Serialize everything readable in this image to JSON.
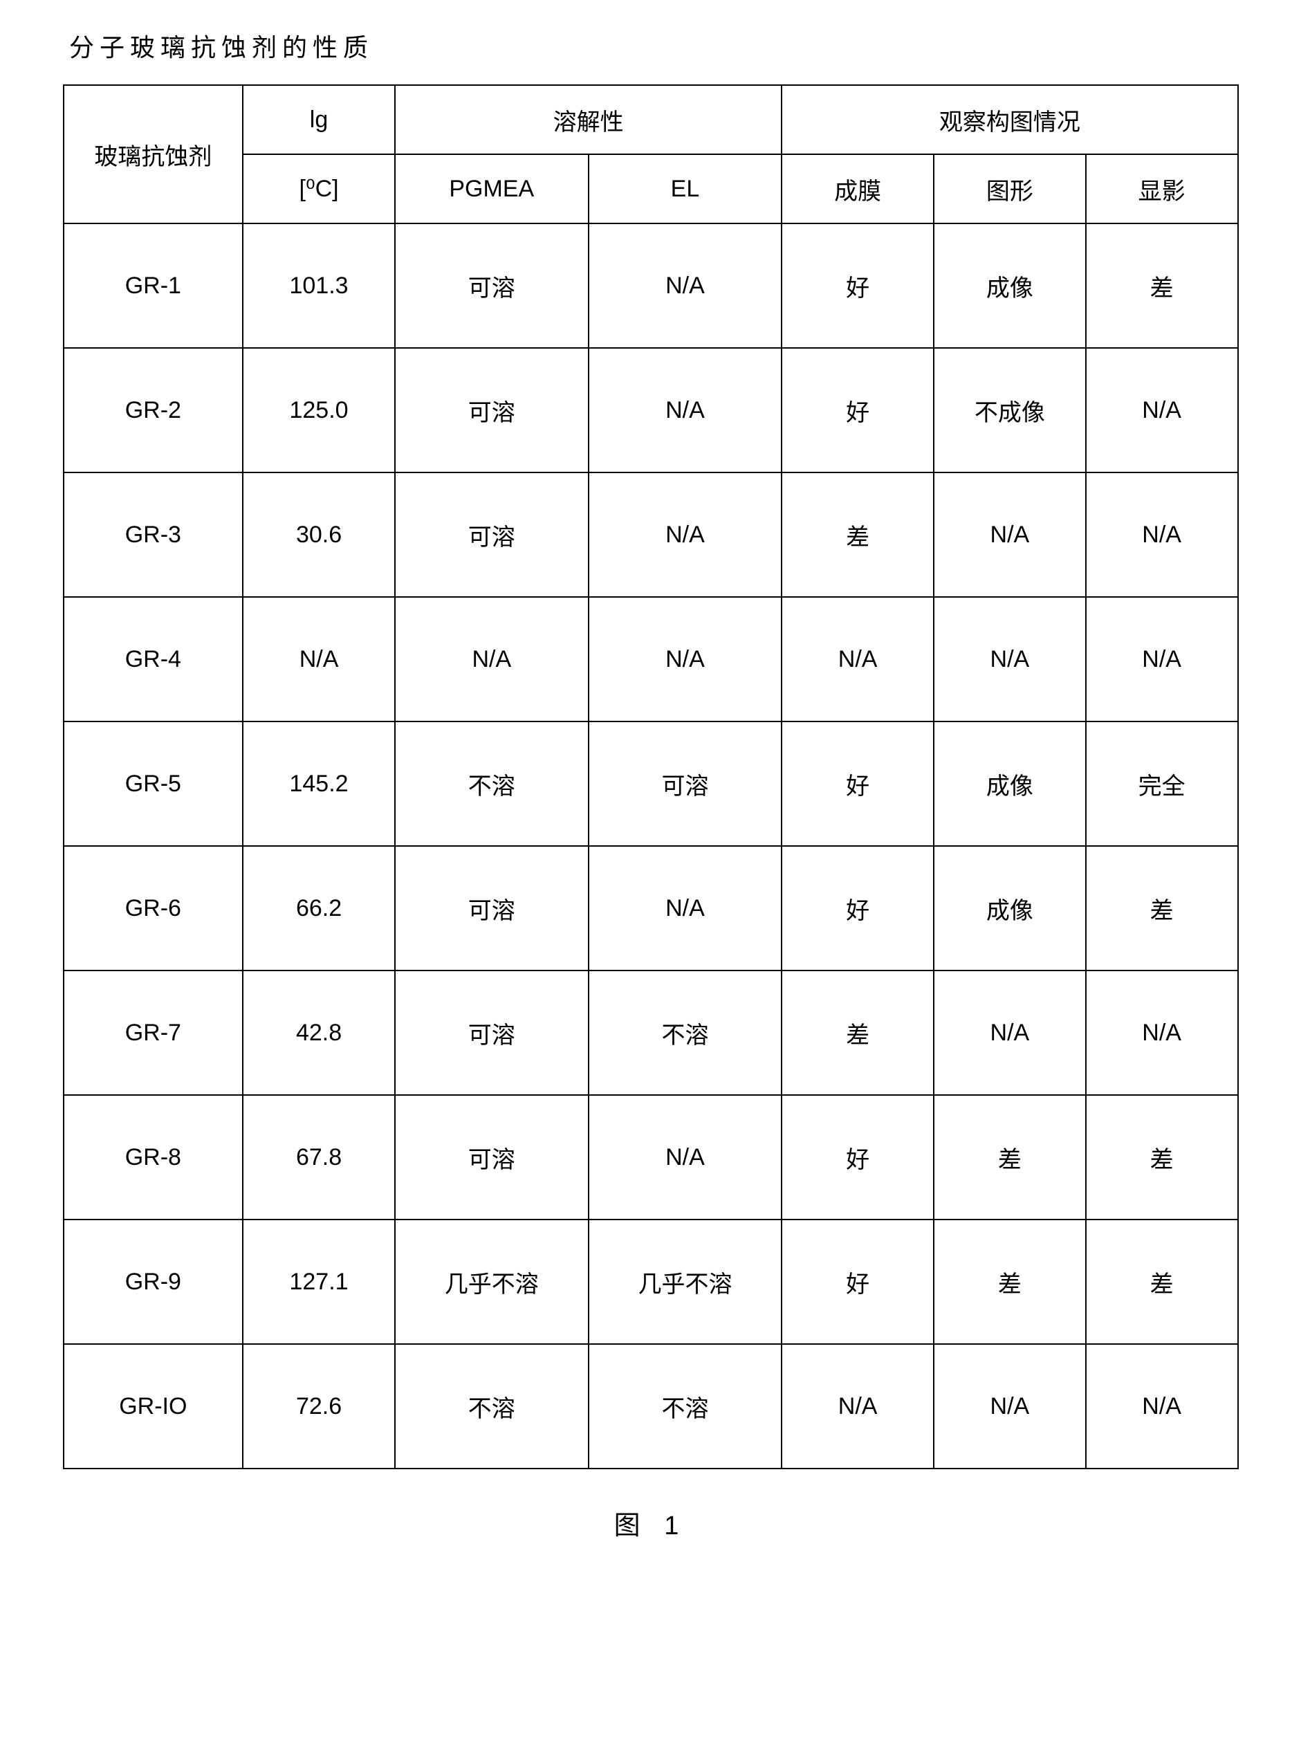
{
  "title": "分子玻璃抗蚀剂的性质",
  "figure_caption": "图 1",
  "table": {
    "header_groups": {
      "resist": "玻璃抗蚀剂",
      "tg": "lg",
      "solubility": "溶解性",
      "pattern": "观察构图情况"
    },
    "sub_headers": {
      "tg_unit": "[⁰C]",
      "pgmea": "PGMEA",
      "el": "EL",
      "film": "成膜",
      "image": "图形",
      "dev": "显影"
    },
    "rows": [
      {
        "name": "GR-1",
        "tg": "101.3",
        "pgmea": "可溶",
        "el": "N/A",
        "film": "好",
        "image": "成像",
        "dev": "差"
      },
      {
        "name": "GR-2",
        "tg": "125.0",
        "pgmea": "可溶",
        "el": "N/A",
        "film": "好",
        "image": "不成像",
        "dev": "N/A"
      },
      {
        "name": "GR-3",
        "tg": "30.6",
        "pgmea": "可溶",
        "el": "N/A",
        "film": "差",
        "image": "N/A",
        "dev": "N/A"
      },
      {
        "name": "GR-4",
        "tg": "N/A",
        "pgmea": "N/A",
        "el": "N/A",
        "film": "N/A",
        "image": "N/A",
        "dev": "N/A"
      },
      {
        "name": "GR-5",
        "tg": "145.2",
        "pgmea": "不溶",
        "el": "可溶",
        "film": "好",
        "image": "成像",
        "dev": "完全"
      },
      {
        "name": "GR-6",
        "tg": "66.2",
        "pgmea": "可溶",
        "el": "N/A",
        "film": "好",
        "image": "成像",
        "dev": "差"
      },
      {
        "name": "GR-7",
        "tg": "42.8",
        "pgmea": "可溶",
        "el": "不溶",
        "film": "差",
        "image": "N/A",
        "dev": "N/A"
      },
      {
        "name": "GR-8",
        "tg": "67.8",
        "pgmea": "可溶",
        "el": "N/A",
        "film": "好",
        "image": "差",
        "dev": "差"
      },
      {
        "name": "GR-9",
        "tg": "127.1",
        "pgmea": "几乎不溶",
        "el": "几乎不溶",
        "film": "好",
        "image": "差",
        "dev": "差"
      },
      {
        "name": "GR-IO",
        "tg": "72.6",
        "pgmea": "不溶",
        "el": "不溶",
        "film": "N/A",
        "image": "N/A",
        "dev": "N/A"
      }
    ]
  }
}
